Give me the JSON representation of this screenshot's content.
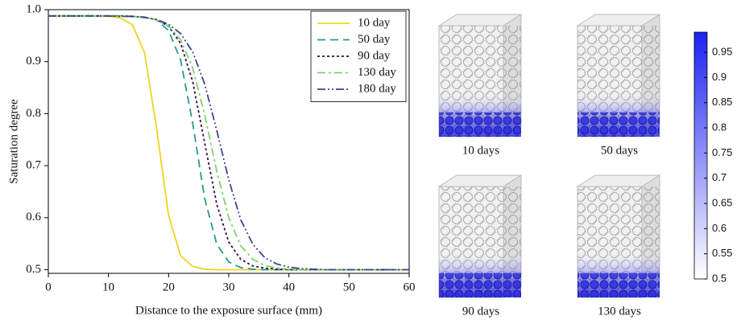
{
  "chart_data": {
    "type": "line",
    "xlabel": "Distance to the exposure surface (mm)",
    "ylabel": "Saturation degree",
    "x": [
      0,
      2,
      4,
      6,
      8,
      10,
      12,
      14,
      16,
      18,
      20,
      22,
      24,
      26,
      28,
      30,
      32,
      34,
      36,
      38,
      40,
      42,
      44,
      46,
      48,
      50,
      52,
      54,
      56,
      58,
      60
    ],
    "series": [
      {
        "name": "10 day",
        "color": "#f2d41c",
        "dash": "solid",
        "values": [
          0.988,
          0.988,
          0.988,
          0.988,
          0.988,
          0.987,
          0.984,
          0.971,
          0.917,
          0.772,
          0.604,
          0.527,
          0.506,
          0.501,
          0.5,
          0.5,
          0.5,
          0.5,
          0.5,
          0.5,
          0.5,
          0.5,
          0.5,
          0.5,
          0.5,
          0.5,
          0.5,
          0.5,
          0.5,
          0.5,
          0.5
        ]
      },
      {
        "name": "50 day",
        "color": "#259b8c",
        "dash": "dashed",
        "values": [
          0.988,
          0.988,
          0.988,
          0.988,
          0.988,
          0.988,
          0.988,
          0.987,
          0.986,
          0.98,
          0.96,
          0.903,
          0.782,
          0.637,
          0.549,
          0.515,
          0.504,
          0.501,
          0.5,
          0.5,
          0.5,
          0.5,
          0.5,
          0.5,
          0.5,
          0.5,
          0.5,
          0.5,
          0.5,
          0.5,
          0.5
        ]
      },
      {
        "name": "90 day",
        "color": "#3a0a4e",
        "dash": "dotted",
        "values": [
          0.988,
          0.988,
          0.988,
          0.988,
          0.988,
          0.988,
          0.988,
          0.987,
          0.985,
          0.981,
          0.968,
          0.935,
          0.862,
          0.744,
          0.626,
          0.553,
          0.52,
          0.507,
          0.503,
          0.501,
          0.5,
          0.5,
          0.5,
          0.5,
          0.5,
          0.5,
          0.5,
          0.5,
          0.5,
          0.5,
          0.5
        ]
      },
      {
        "name": "130 day",
        "color": "#7dd36a",
        "dash": "dashdot",
        "values": [
          0.988,
          0.988,
          0.988,
          0.988,
          0.988,
          0.988,
          0.987,
          0.987,
          0.985,
          0.98,
          0.969,
          0.942,
          0.888,
          0.798,
          0.69,
          0.6,
          0.546,
          0.52,
          0.508,
          0.503,
          0.501,
          0.5,
          0.5,
          0.5,
          0.5,
          0.5,
          0.5,
          0.5,
          0.5,
          0.5,
          0.5
        ]
      },
      {
        "name": "180 day",
        "color": "#3a4888",
        "dash": "dashdotdot",
        "values": [
          0.988,
          0.988,
          0.988,
          0.988,
          0.988,
          0.988,
          0.987,
          0.987,
          0.985,
          0.981,
          0.972,
          0.954,
          0.919,
          0.857,
          0.768,
          0.673,
          0.596,
          0.549,
          0.523,
          0.511,
          0.505,
          0.502,
          0.501,
          0.5,
          0.5,
          0.5,
          0.5,
          0.5,
          0.5,
          0.5,
          0.5
        ]
      }
    ],
    "xlim": [
      0,
      60
    ],
    "xticks": [
      0,
      10,
      20,
      30,
      40,
      50,
      60
    ],
    "ylim": [
      0.493,
      1.0
    ],
    "yticks": [
      0.5,
      0.6,
      0.7,
      0.8,
      0.9,
      {
        "value": 1.0,
        "label": "1.0"
      }
    ],
    "grid": false,
    "legend": "upper right"
  },
  "renders": {
    "captions": [
      "10 days",
      "50 days",
      "90 days",
      "130 days"
    ]
  },
  "colorbar": {
    "lim": [
      0.5,
      0.99
    ],
    "colors": [
      "#ffffff",
      "#1c22f0"
    ],
    "ticks": [
      0.5,
      0.55,
      0.6,
      0.65,
      0.7,
      0.75,
      0.8,
      0.85,
      0.9,
      0.95
    ]
  }
}
